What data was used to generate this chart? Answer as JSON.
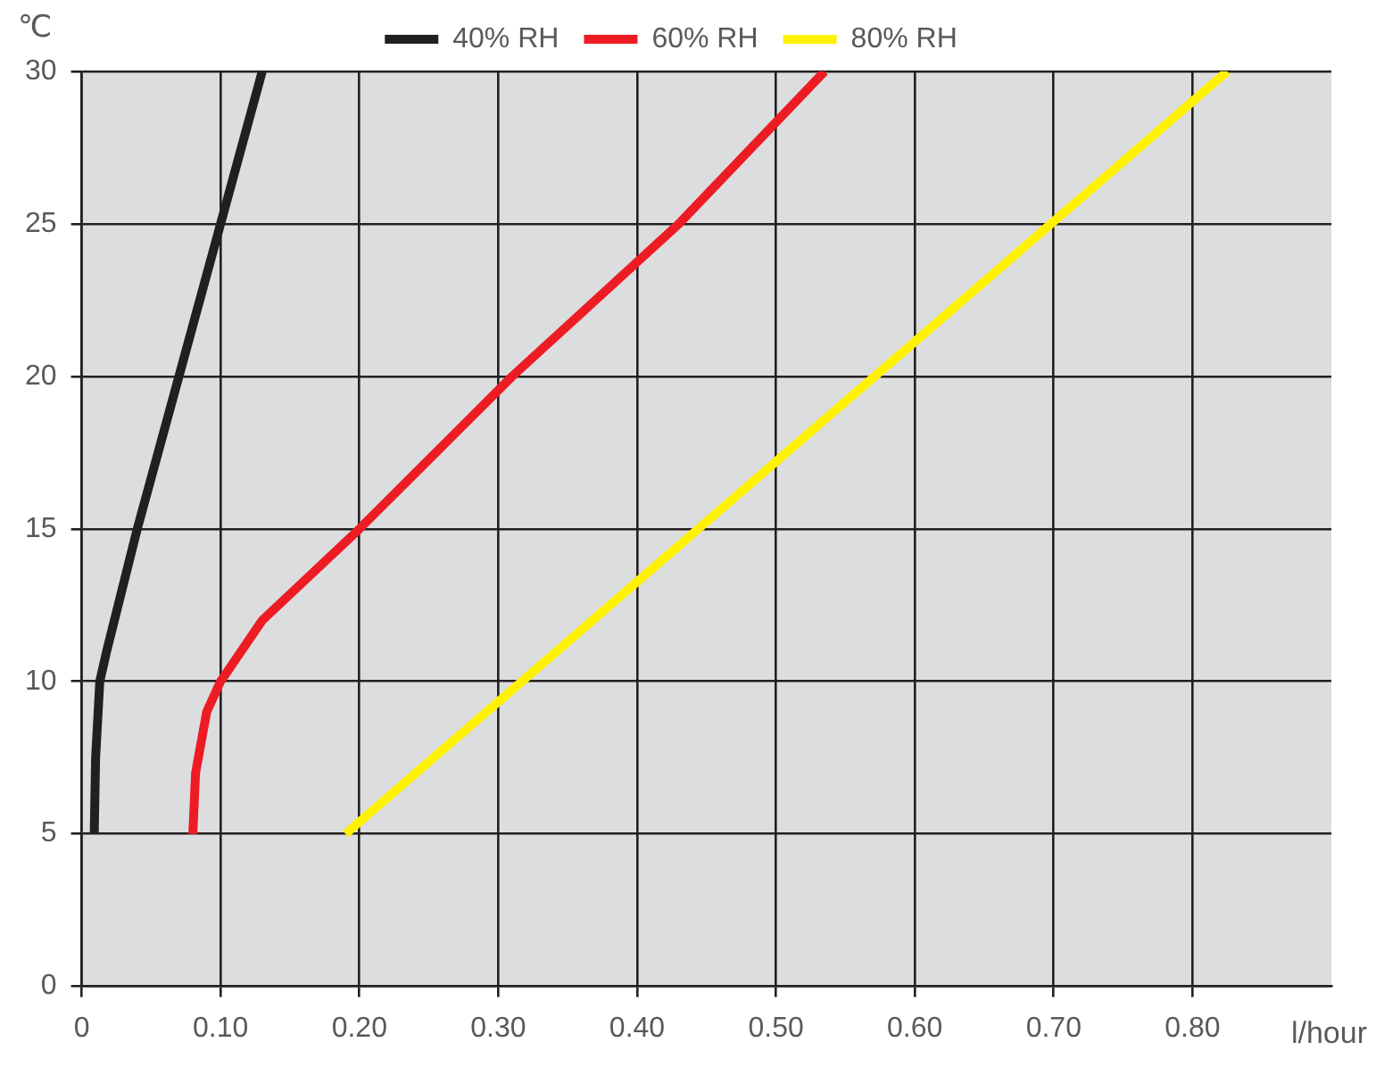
{
  "chart_data": {
    "type": "line",
    "xlabel": "l/hour",
    "ylabel": "℃",
    "xlim": [
      0,
      0.9
    ],
    "xticks": [
      0,
      {
        "value": 0.1,
        "label": "0.10"
      },
      {
        "value": 0.2,
        "label": "0.20"
      },
      {
        "value": 0.3,
        "label": "0.30"
      },
      {
        "value": 0.4,
        "label": "0.40"
      },
      {
        "value": 0.5,
        "label": "0.50"
      },
      {
        "value": 0.6,
        "label": "0.60"
      },
      {
        "value": 0.7,
        "label": "0.70"
      },
      {
        "value": 0.8,
        "label": "0.80"
      }
    ],
    "ylim": [
      0,
      30
    ],
    "yticks": [
      0,
      5,
      10,
      15,
      20,
      25,
      30
    ],
    "grid": true,
    "legend": "top",
    "marker": "none",
    "line_style": "solid",
    "series": [
      {
        "name": "40% RH",
        "color": "#231f20",
        "x": [
          0.009,
          0.01,
          0.013,
          0.018,
          0.04,
          0.07,
          0.1,
          0.13
        ],
        "values": [
          5,
          7.5,
          10,
          11,
          15,
          20,
          25,
          30
        ]
      },
      {
        "name": "60% RH",
        "color": "#ed1c24",
        "x": [
          0.08,
          0.082,
          0.09,
          0.1,
          0.13,
          0.2,
          0.31,
          0.43,
          0.535
        ],
        "values": [
          5,
          7,
          9,
          10,
          12,
          15,
          20,
          25,
          30
        ]
      },
      {
        "name": "80% RH",
        "color": "#fff200",
        "x": [
          0.19,
          0.825
        ],
        "values": [
          5,
          30
        ]
      }
    ]
  }
}
